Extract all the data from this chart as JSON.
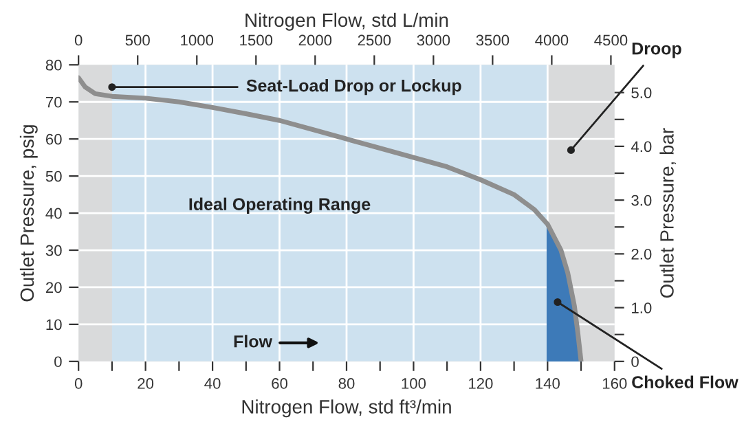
{
  "chart_data": {
    "type": "line",
    "xlabel": "Nitrogen Flow, std ft³/min",
    "x2label": "Nitrogen Flow, std L/min",
    "ylabel": "Outlet Pressure, psig",
    "y2label": "Outlet Pressure, bar",
    "series": [
      {
        "color": "#8e8e8e",
        "x": [
          0,
          2,
          5,
          10,
          20,
          30,
          40,
          50,
          60,
          70,
          80,
          90,
          100,
          110,
          120,
          130,
          136,
          140,
          144,
          146,
          148,
          149,
          150
        ],
        "values": [
          76.5,
          74,
          72.2,
          71.5,
          71,
          70,
          68.5,
          66.8,
          65,
          62.5,
          60,
          57.5,
          55,
          52.5,
          49,
          45,
          41,
          37,
          30,
          24,
          15,
          8,
          0
        ]
      },
      {
        "type": "area",
        "color": "#3d7ab8",
        "x": [
          140,
          144,
          146,
          148,
          149,
          150
        ],
        "values": [
          37,
          30,
          24,
          15,
          8,
          0
        ]
      }
    ],
    "xlim": [
      0,
      160
    ],
    "xticks": [
      0,
      {
        "value": 10,
        "label": null
      },
      20,
      {
        "value": 30,
        "label": null
      },
      40,
      {
        "value": 50,
        "label": null
      },
      60,
      {
        "value": 70,
        "label": null
      },
      80,
      {
        "value": 90,
        "label": null
      },
      100,
      {
        "value": 110,
        "label": null
      },
      120,
      {
        "value": 130,
        "label": null
      },
      140,
      {
        "value": 150,
        "label": null
      },
      160
    ],
    "x2lim": [
      0,
      4531
    ],
    "x2ticks": [
      0,
      500,
      1000,
      1500,
      2000,
      2500,
      3000,
      3500,
      4000,
      4500
    ],
    "ylim": [
      0,
      80
    ],
    "yticks": [
      0,
      10,
      20,
      30,
      40,
      50,
      60,
      70,
      80
    ],
    "y2lim": [
      0,
      5.516
    ],
    "y2ticks": [
      0,
      {
        "value": 0.5,
        "label": null
      },
      {
        "value": 1.0,
        "label": "1.0"
      },
      {
        "value": 1.5,
        "label": null
      },
      {
        "value": 2.0,
        "label": "2.0"
      },
      {
        "value": 2.5,
        "label": null
      },
      {
        "value": 3.0,
        "label": "3.0"
      },
      {
        "value": 3.5,
        "label": null
      },
      {
        "value": 4.0,
        "label": "4.0"
      },
      {
        "value": 4.5,
        "label": null
      },
      {
        "value": 5.0,
        "label": "5.0"
      }
    ],
    "bands": [
      {
        "axis": "x",
        "from": 10,
        "to": 140,
        "color": "#cde1ef"
      }
    ],
    "annotations": [
      {
        "text": "Seat-Load Drop or Lockup",
        "x": 10,
        "y": 74
      },
      {
        "text": "Droop",
        "x": 147,
        "y": 57
      },
      {
        "text": "Choked Flow",
        "x": 143,
        "y": 16
      },
      "Ideal Operating Range",
      "Flow"
    ],
    "grid": true,
    "marker": "none",
    "line_style": "solid"
  }
}
